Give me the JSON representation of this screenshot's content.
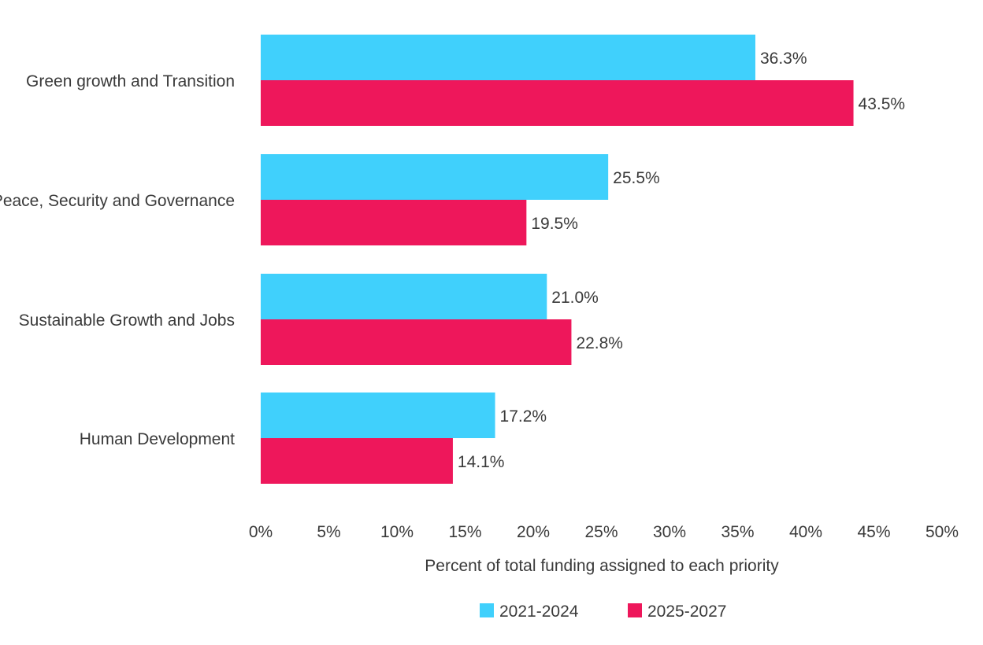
{
  "chart_data": {
    "type": "bar",
    "orientation": "horizontal",
    "categories": [
      "Green growth and Transition",
      "Peace, Security and Governance",
      "Sustainable Growth and Jobs",
      "Human Development"
    ],
    "series": [
      {
        "name": "2021-2024",
        "values": [
          36.3,
          25.5,
          21.0,
          17.2
        ],
        "labels": [
          "36.3%",
          "25.5%",
          "21.0%",
          "17.2%"
        ]
      },
      {
        "name": "2025-2027",
        "values": [
          43.5,
          19.5,
          22.8,
          14.1
        ],
        "labels": [
          "43.5%",
          "19.5%",
          "22.8%",
          "14.1%"
        ]
      }
    ],
    "xlabel": "Percent of total funding assigned to each priority",
    "xlim": [
      0,
      50
    ],
    "xticks": [
      "0%",
      "5%",
      "10%",
      "15%",
      "20%",
      "25%",
      "30%",
      "35%",
      "40%",
      "45%",
      "50%"
    ],
    "grid": false,
    "legend_position": "bottom-center"
  },
  "colors": {
    "2021-2024": "#40d0fc",
    "2025-2027": "#ee175b",
    "text": "#3a3a3a"
  }
}
